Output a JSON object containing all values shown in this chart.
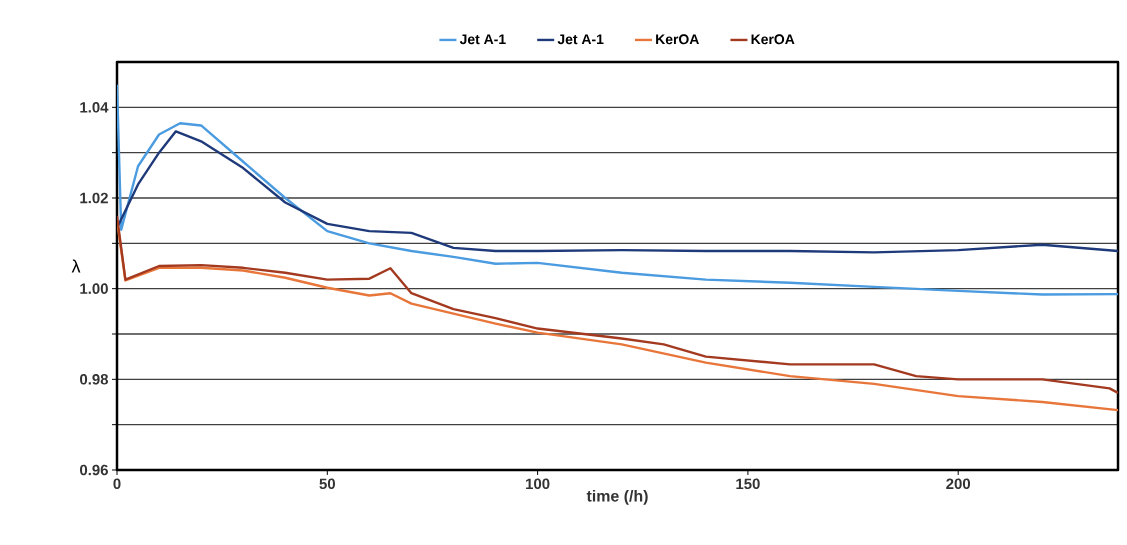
{
  "chart_data": {
    "type": "line",
    "xlabel": "time (/h)",
    "ylabel": "λ",
    "xlim": [
      0,
      238
    ],
    "ylim": [
      0.96,
      1.05
    ],
    "xticks": [
      0,
      50,
      100,
      150,
      200
    ],
    "yticks": [
      0.96,
      {
        "value": 0.97,
        "label": null
      },
      0.98,
      {
        "value": 0.99,
        "label": null
      },
      {
        "value": 1.0,
        "label": "1.00"
      },
      {
        "value": 1.01,
        "label": null
      },
      1.02,
      {
        "value": 1.03,
        "label": null
      },
      1.04
    ],
    "grid": "y",
    "legend": "top",
    "marker": "none",
    "line_style": "solid",
    "series": [
      {
        "name": "Jet A-1",
        "color": "#4a9be0",
        "x": [
          0,
          1,
          5,
          10,
          15,
          20,
          30,
          40,
          50,
          60,
          70,
          80,
          90,
          100,
          120,
          140,
          160,
          180,
          200,
          220,
          238
        ],
        "values": [
          1.045,
          1.013,
          1.027,
          1.034,
          1.0365,
          1.036,
          1.028,
          1.02,
          1.0127,
          1.01,
          1.0083,
          1.007,
          1.0055,
          1.0057,
          1.0035,
          1.002,
          1.0013,
          1.0004,
          0.9995,
          0.9987,
          0.9988
        ]
      },
      {
        "name": "Jet A-1",
        "color": "#1f3a7a",
        "x": [
          0,
          5,
          10,
          14,
          20,
          30,
          40,
          50,
          60,
          70,
          80,
          90,
          100,
          120,
          140,
          160,
          180,
          200,
          220,
          238
        ],
        "values": [
          1.0134,
          1.023,
          1.03,
          1.0347,
          1.0325,
          1.0266,
          1.019,
          1.0143,
          1.0127,
          1.0123,
          1.009,
          1.0083,
          1.0083,
          1.0085,
          1.0083,
          1.0083,
          1.008,
          1.0085,
          1.0097,
          1.0083
        ]
      },
      {
        "name": "KerOA",
        "color": "#e8763a",
        "x": [
          0,
          2,
          10,
          20,
          30,
          40,
          50,
          60,
          65,
          70,
          80,
          90,
          100,
          120,
          140,
          160,
          180,
          200,
          220,
          238
        ],
        "values": [
          1.015,
          1.0018,
          1.0046,
          1.0046,
          1.004,
          1.0024,
          1.0002,
          0.9985,
          0.999,
          0.9967,
          0.9945,
          0.9923,
          0.9903,
          0.9877,
          0.9837,
          0.9807,
          0.979,
          0.9763,
          0.975,
          0.9732
        ]
      },
      {
        "name": "KerOA",
        "color": "#a33a20",
        "x": [
          0,
          2,
          10,
          20,
          30,
          40,
          50,
          60,
          65,
          70,
          80,
          90,
          100,
          120,
          130,
          140,
          160,
          180,
          190,
          200,
          220,
          236,
          238
        ],
        "values": [
          1.016,
          1.002,
          1.005,
          1.0052,
          1.0046,
          1.0035,
          1.002,
          1.0022,
          1.0045,
          0.999,
          0.9955,
          0.9935,
          0.9912,
          0.989,
          0.9877,
          0.985,
          0.9833,
          0.9833,
          0.9807,
          0.98,
          0.98,
          0.978,
          0.977
        ]
      }
    ]
  }
}
